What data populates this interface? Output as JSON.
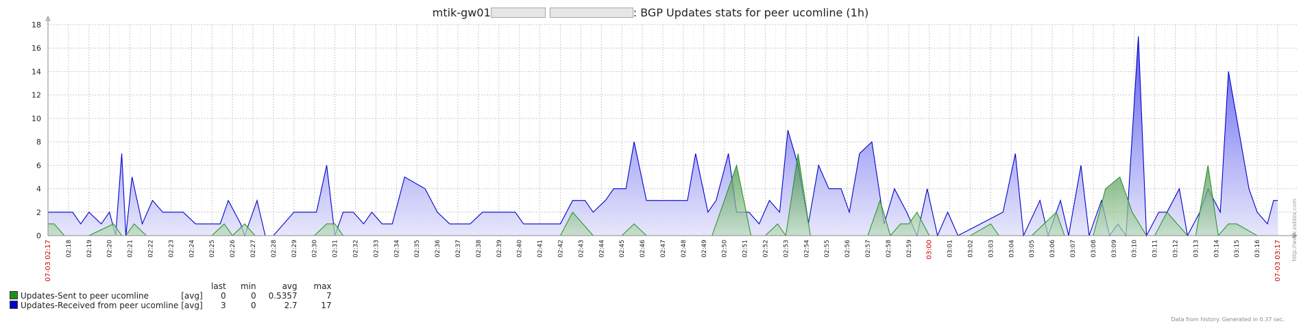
{
  "title": {
    "prefix": "mtik-gw01",
    "suffix": ": BGP Updates stats for peer ucomline (1h)"
  },
  "colors": {
    "sent": "#1f8f1f",
    "received": "#0000cc",
    "grid": "#c8c8c8",
    "accent_red": "#cc0000"
  },
  "legend": {
    "headers": {
      "last": "last",
      "min": "min",
      "avg": "avg",
      "max": "max"
    },
    "rows": [
      {
        "name": "Updates-Sent to peer ucomline",
        "func": "[avg]",
        "last": "0",
        "min": "0",
        "avg": "0.5357",
        "max": "7",
        "color": "#1f8f1f"
      },
      {
        "name": "Updates-Received from peer ucomline",
        "func": "[avg]",
        "last": "3",
        "min": "0",
        "avg": "2.7",
        "max": "17",
        "color": "#0000cc"
      }
    ]
  },
  "footer_note": "Data from history. Generated in 0.37 sec.",
  "side_url": "http://www.zabbix.com",
  "chart_data": {
    "type": "area",
    "title": "mtik-gw01 ... : BGP Updates stats for peer ucomline (1h)",
    "xlabel": "",
    "ylabel": "",
    "ylim": [
      0,
      18
    ],
    "yticks": [
      0,
      2,
      4,
      6,
      8,
      10,
      12,
      14,
      16,
      18
    ],
    "grid": true,
    "legend_position": "bottom-left",
    "x_start_label": "07-03 02:17",
    "x_end_label": "07-03 03:17",
    "x_highlight_label": "03:00",
    "xticks": [
      "02:18",
      "02:19",
      "02:20",
      "02:21",
      "02:22",
      "02:23",
      "02:24",
      "02:25",
      "02:26",
      "02:27",
      "02:28",
      "02:29",
      "02:30",
      "02:31",
      "02:32",
      "02:33",
      "02:34",
      "02:35",
      "02:36",
      "02:37",
      "02:38",
      "02:39",
      "02:40",
      "02:41",
      "02:42",
      "02:43",
      "02:44",
      "02:45",
      "02:46",
      "02:47",
      "02:48",
      "02:49",
      "02:50",
      "02:51",
      "02:52",
      "02:53",
      "02:54",
      "02:55",
      "02:56",
      "02:57",
      "02:58",
      "02:59",
      "03:00",
      "03:01",
      "03:02",
      "03:03",
      "03:04",
      "03:05",
      "03:06",
      "03:07",
      "03:08",
      "03:09",
      "03:10",
      "03:11",
      "03:12",
      "03:13",
      "03:14",
      "03:15",
      "03:16"
    ],
    "series": [
      {
        "name": "Updates-Sent to peer ucomline",
        "color": "#1f8f1f",
        "points": [
          [
            0,
            1
          ],
          [
            0.3,
            1
          ],
          [
            0.8,
            0
          ],
          [
            1.0,
            0
          ],
          [
            2.0,
            0
          ],
          [
            3.2,
            1
          ],
          [
            3.6,
            0
          ],
          [
            3.8,
            0
          ],
          [
            4.2,
            1
          ],
          [
            4.8,
            0
          ],
          [
            5.0,
            0
          ],
          [
            6.0,
            0
          ],
          [
            7.0,
            0
          ],
          [
            8.0,
            0
          ],
          [
            8.6,
            1
          ],
          [
            9.0,
            0
          ],
          [
            9.6,
            1
          ],
          [
            10.1,
            0
          ],
          [
            11.0,
            0
          ],
          [
            12.0,
            0
          ],
          [
            13.0,
            0
          ],
          [
            13.6,
            1
          ],
          [
            14.0,
            1
          ],
          [
            14.4,
            0
          ],
          [
            15.0,
            0
          ],
          [
            16.0,
            0
          ],
          [
            17.0,
            0
          ],
          [
            18.0,
            0
          ],
          [
            19.0,
            0
          ],
          [
            20.0,
            0
          ],
          [
            21.0,
            0
          ],
          [
            22.0,
            0
          ],
          [
            23.0,
            0
          ],
          [
            24.0,
            0
          ],
          [
            25.0,
            0
          ],
          [
            25.6,
            2
          ],
          [
            26.6,
            0
          ],
          [
            27.0,
            0
          ],
          [
            28.0,
            0
          ],
          [
            28.6,
            1
          ],
          [
            29.2,
            0
          ],
          [
            30.0,
            0
          ],
          [
            31.0,
            0
          ],
          [
            32.0,
            0
          ],
          [
            32.4,
            0
          ],
          [
            33.6,
            6
          ],
          [
            34.3,
            0
          ],
          [
            35.0,
            0
          ],
          [
            35.6,
            1
          ],
          [
            36.0,
            0
          ],
          [
            36.6,
            7
          ],
          [
            37.2,
            0
          ],
          [
            38.0,
            0
          ],
          [
            39.0,
            0
          ],
          [
            40.0,
            0
          ],
          [
            40.6,
            3
          ],
          [
            41.1,
            0
          ],
          [
            41.6,
            1
          ],
          [
            42.0,
            1
          ],
          [
            42.4,
            2
          ],
          [
            43.0,
            0
          ],
          [
            44.0,
            0
          ],
          [
            45.0,
            0
          ],
          [
            46.0,
            1
          ],
          [
            46.4,
            0
          ],
          [
            47.0,
            0
          ],
          [
            48.0,
            0
          ],
          [
            48.6,
            1
          ],
          [
            49.2,
            2
          ],
          [
            49.6,
            0
          ],
          [
            50.0,
            0
          ],
          [
            51.0,
            0
          ],
          [
            51.6,
            4
          ],
          [
            52.3,
            5
          ],
          [
            52.9,
            2
          ],
          [
            53.6,
            0
          ],
          [
            54.0,
            0
          ],
          [
            54.6,
            2
          ],
          [
            55.1,
            1
          ],
          [
            55.6,
            0
          ],
          [
            56.0,
            0
          ],
          [
            56.6,
            6
          ],
          [
            57.1,
            0
          ],
          [
            57.6,
            1
          ],
          [
            58.0,
            1
          ],
          [
            59.0,
            0
          ],
          [
            60.0,
            0
          ]
        ]
      },
      {
        "name": "Updates-Received from peer ucomline",
        "color": "#0000cc",
        "points": [
          [
            0,
            2
          ],
          [
            1.2,
            2
          ],
          [
            1.6,
            1
          ],
          [
            2.0,
            2
          ],
          [
            2.6,
            1
          ],
          [
            3.0,
            2
          ],
          [
            3.3,
            0
          ],
          [
            3.6,
            7
          ],
          [
            3.8,
            0
          ],
          [
            4.1,
            5
          ],
          [
            4.6,
            1
          ],
          [
            5.1,
            3
          ],
          [
            5.6,
            2
          ],
          [
            6.6,
            2
          ],
          [
            7.2,
            1
          ],
          [
            8.4,
            1
          ],
          [
            8.8,
            3
          ],
          [
            9.4,
            1
          ],
          [
            9.6,
            0
          ],
          [
            10.2,
            3
          ],
          [
            10.6,
            0
          ],
          [
            11.0,
            0
          ],
          [
            12.0,
            2
          ],
          [
            13.1,
            2
          ],
          [
            13.6,
            6
          ],
          [
            14.0,
            0
          ],
          [
            14.4,
            2
          ],
          [
            14.9,
            2
          ],
          [
            15.4,
            1
          ],
          [
            15.8,
            2
          ],
          [
            16.3,
            1
          ],
          [
            16.8,
            1
          ],
          [
            17.4,
            5
          ],
          [
            18.4,
            4
          ],
          [
            19.0,
            2
          ],
          [
            19.6,
            1
          ],
          [
            20.6,
            1
          ],
          [
            21.2,
            2
          ],
          [
            22.8,
            2
          ],
          [
            23.2,
            1
          ],
          [
            25.0,
            1
          ],
          [
            25.6,
            3
          ],
          [
            26.2,
            3
          ],
          [
            26.6,
            2
          ],
          [
            27.2,
            3
          ],
          [
            27.6,
            4
          ],
          [
            28.2,
            4
          ],
          [
            28.6,
            8
          ],
          [
            29.2,
            3
          ],
          [
            31.2,
            3
          ],
          [
            31.6,
            7
          ],
          [
            32.2,
            2
          ],
          [
            32.6,
            3
          ],
          [
            33.2,
            7
          ],
          [
            33.6,
            2
          ],
          [
            34.2,
            2
          ],
          [
            34.7,
            1
          ],
          [
            35.2,
            3
          ],
          [
            35.7,
            2
          ],
          [
            36.1,
            9
          ],
          [
            36.6,
            6
          ],
          [
            37.1,
            1
          ],
          [
            37.6,
            6
          ],
          [
            38.1,
            4
          ],
          [
            38.7,
            4
          ],
          [
            39.1,
            2
          ],
          [
            39.6,
            7
          ],
          [
            40.2,
            8
          ],
          [
            40.8,
            1
          ],
          [
            41.3,
            4
          ],
          [
            41.9,
            2
          ],
          [
            42.4,
            0
          ],
          [
            42.9,
            4
          ],
          [
            43.4,
            0
          ],
          [
            43.9,
            2
          ],
          [
            44.4,
            0
          ],
          [
            45.5,
            1
          ],
          [
            46.6,
            2
          ],
          [
            47.2,
            7
          ],
          [
            47.6,
            0
          ],
          [
            48.4,
            3
          ],
          [
            48.8,
            0
          ],
          [
            49.4,
            3
          ],
          [
            49.8,
            0
          ],
          [
            50.4,
            6
          ],
          [
            50.8,
            0
          ],
          [
            51.4,
            3
          ],
          [
            51.8,
            0
          ],
          [
            52.2,
            1
          ],
          [
            52.6,
            0
          ],
          [
            53.2,
            17
          ],
          [
            53.6,
            0
          ],
          [
            54.2,
            2
          ],
          [
            54.6,
            2
          ],
          [
            55.2,
            4
          ],
          [
            55.6,
            0
          ],
          [
            56.2,
            2
          ],
          [
            56.6,
            4
          ],
          [
            57.2,
            2
          ],
          [
            57.6,
            14
          ],
          [
            58.2,
            8
          ],
          [
            58.6,
            4
          ],
          [
            59.0,
            2
          ],
          [
            59.5,
            1
          ],
          [
            59.8,
            3
          ],
          [
            60.0,
            3
          ]
        ]
      }
    ]
  }
}
